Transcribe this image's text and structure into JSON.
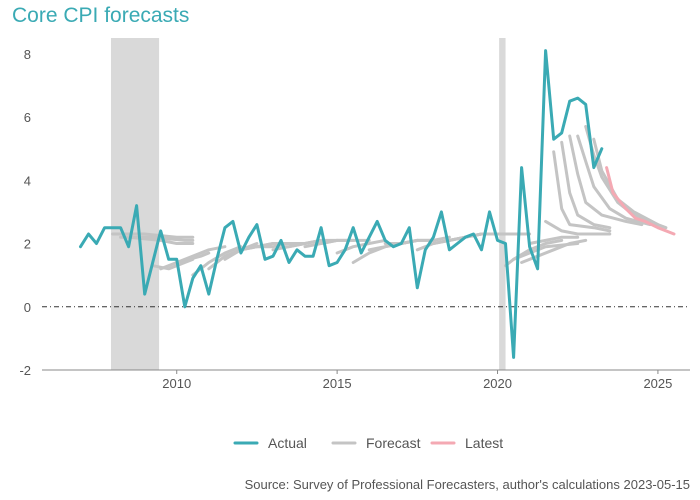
{
  "chart_data": {
    "type": "line",
    "title": "Core CPI forecasts",
    "source": "Source: Survey of Professional Forecasters, author's calculations 2023-05-15",
    "xlabel": "",
    "ylabel": "",
    "xlim": [
      2005.8,
      2026.0
    ],
    "ylim": [
      -2.0,
      8.5
    ],
    "x_ticks": [
      {
        "value": 2010,
        "label": "2010"
      },
      {
        "value": 2015,
        "label": "2015"
      },
      {
        "value": 2020,
        "label": "2020"
      },
      {
        "value": 2025,
        "label": "2025"
      }
    ],
    "y_ticks": [
      {
        "value": -2,
        "label": "-2"
      },
      {
        "value": 0,
        "label": "0"
      },
      {
        "value": 2,
        "label": "2"
      },
      {
        "value": 4,
        "label": "4"
      },
      {
        "value": 6,
        "label": "6"
      },
      {
        "value": 8,
        "label": "8"
      }
    ],
    "zero_line": true,
    "recessions": [
      {
        "start": 2007.95,
        "end": 2009.45
      },
      {
        "start": 2020.05,
        "end": 2020.25
      }
    ],
    "colors": {
      "actual": "#3AAAB4",
      "forecast": "#C4C4C4",
      "latest": "#F4A9B3",
      "recession": "#D9D9D9",
      "axis": "#555555"
    },
    "legend": [
      {
        "key": "actual",
        "label": "Actual"
      },
      {
        "key": "forecast",
        "label": "Forecast"
      },
      {
        "key": "latest",
        "label": "Latest"
      }
    ],
    "series": [
      {
        "name": "Actual",
        "key": "actual",
        "points": [
          [
            2007.0,
            1.9
          ],
          [
            2007.25,
            2.3
          ],
          [
            2007.5,
            2.0
          ],
          [
            2007.75,
            2.5
          ],
          [
            2008.0,
            2.5
          ],
          [
            2008.25,
            2.5
          ],
          [
            2008.5,
            1.9
          ],
          [
            2008.75,
            3.2
          ],
          [
            2009.0,
            0.4
          ],
          [
            2009.25,
            1.4
          ],
          [
            2009.5,
            2.4
          ],
          [
            2009.75,
            1.5
          ],
          [
            2010.0,
            1.5
          ],
          [
            2010.25,
            0.0
          ],
          [
            2010.5,
            0.9
          ],
          [
            2010.75,
            1.3
          ],
          [
            2011.0,
            0.4
          ],
          [
            2011.25,
            1.5
          ],
          [
            2011.5,
            2.5
          ],
          [
            2011.75,
            2.7
          ],
          [
            2012.0,
            1.7
          ],
          [
            2012.25,
            2.2
          ],
          [
            2012.5,
            2.6
          ],
          [
            2012.75,
            1.5
          ],
          [
            2013.0,
            1.6
          ],
          [
            2013.25,
            2.1
          ],
          [
            2013.5,
            1.4
          ],
          [
            2013.75,
            1.8
          ],
          [
            2014.0,
            1.6
          ],
          [
            2014.25,
            1.6
          ],
          [
            2014.5,
            2.5
          ],
          [
            2014.75,
            1.3
          ],
          [
            2015.0,
            1.4
          ],
          [
            2015.25,
            1.8
          ],
          [
            2015.5,
            2.5
          ],
          [
            2015.75,
            1.7
          ],
          [
            2016.0,
            2.2
          ],
          [
            2016.25,
            2.7
          ],
          [
            2016.5,
            2.1
          ],
          [
            2016.75,
            1.9
          ],
          [
            2017.0,
            2.0
          ],
          [
            2017.25,
            2.5
          ],
          [
            2017.5,
            0.6
          ],
          [
            2017.75,
            1.8
          ],
          [
            2018.0,
            2.2
          ],
          [
            2018.25,
            3.0
          ],
          [
            2018.5,
            1.8
          ],
          [
            2018.75,
            2.0
          ],
          [
            2019.0,
            2.2
          ],
          [
            2019.25,
            2.3
          ],
          [
            2019.5,
            1.8
          ],
          [
            2019.75,
            3.0
          ],
          [
            2020.0,
            2.1
          ],
          [
            2020.25,
            2.0
          ],
          [
            2020.5,
            -1.6
          ],
          [
            2020.75,
            4.4
          ],
          [
            2021.0,
            1.9
          ],
          [
            2021.25,
            1.2
          ],
          [
            2021.5,
            8.1
          ],
          [
            2021.75,
            5.3
          ],
          [
            2022.0,
            5.5
          ],
          [
            2022.25,
            6.5
          ],
          [
            2022.5,
            6.6
          ],
          [
            2022.75,
            6.4
          ],
          [
            2023.0,
            4.4
          ],
          [
            2023.25,
            5.0
          ]
        ]
      },
      {
        "name": "Latest",
        "key": "latest",
        "points": [
          [
            2023.4,
            4.4
          ],
          [
            2023.6,
            3.6
          ],
          [
            2024.0,
            3.1
          ],
          [
            2024.3,
            2.8
          ],
          [
            2024.6,
            2.7
          ],
          [
            2025.0,
            2.5
          ],
          [
            2025.5,
            2.3
          ]
        ]
      }
    ],
    "forecast_vintages": [
      {
        "points": [
          [
            2008.0,
            2.3
          ],
          [
            2009.0,
            2.3
          ],
          [
            2010.0,
            2.2
          ],
          [
            2010.5,
            2.2
          ]
        ]
      },
      {
        "points": [
          [
            2008.25,
            2.2
          ],
          [
            2009.25,
            2.2
          ],
          [
            2010.25,
            2.1
          ],
          [
            2010.5,
            2.1
          ]
        ]
      },
      {
        "points": [
          [
            2008.5,
            2.2
          ],
          [
            2009.5,
            2.1
          ],
          [
            2010.0,
            2.0
          ],
          [
            2010.5,
            2.0
          ]
        ]
      },
      {
        "points": [
          [
            2009.25,
            1.3
          ],
          [
            2009.75,
            1.2
          ],
          [
            2010.25,
            1.4
          ],
          [
            2010.5,
            1.5
          ]
        ]
      },
      {
        "points": [
          [
            2009.5,
            1.2
          ],
          [
            2010.0,
            1.4
          ],
          [
            2010.75,
            1.6
          ],
          [
            2011.0,
            1.7
          ]
        ]
      },
      {
        "points": [
          [
            2010.0,
            1.4
          ],
          [
            2010.5,
            1.6
          ],
          [
            2011.0,
            1.8
          ],
          [
            2011.5,
            1.9
          ]
        ]
      },
      {
        "points": [
          [
            2010.5,
            1.0
          ],
          [
            2011.0,
            1.4
          ],
          [
            2011.5,
            1.7
          ],
          [
            2012.0,
            1.9
          ]
        ]
      },
      {
        "points": [
          [
            2011.0,
            1.2
          ],
          [
            2011.5,
            1.6
          ],
          [
            2012.0,
            1.8
          ],
          [
            2012.5,
            2.0
          ]
        ]
      },
      {
        "points": [
          [
            2011.5,
            1.5
          ],
          [
            2012.0,
            1.8
          ],
          [
            2012.5,
            1.9
          ],
          [
            2013.0,
            2.0
          ]
        ]
      },
      {
        "points": [
          [
            2012.0,
            1.8
          ],
          [
            2012.5,
            1.9
          ],
          [
            2013.0,
            2.0
          ],
          [
            2013.5,
            2.0
          ]
        ]
      },
      {
        "points": [
          [
            2012.5,
            1.9
          ],
          [
            2013.0,
            1.9
          ],
          [
            2013.5,
            2.0
          ],
          [
            2014.0,
            2.0
          ]
        ]
      },
      {
        "points": [
          [
            2013.0,
            1.8
          ],
          [
            2013.5,
            1.9
          ],
          [
            2014.0,
            2.0
          ],
          [
            2014.5,
            2.1
          ]
        ]
      },
      {
        "points": [
          [
            2013.5,
            1.9
          ],
          [
            2014.0,
            2.0
          ],
          [
            2014.5,
            2.1
          ],
          [
            2015.0,
            2.1
          ]
        ]
      },
      {
        "points": [
          [
            2014.0,
            1.9
          ],
          [
            2014.5,
            2.0
          ],
          [
            2015.0,
            2.1
          ],
          [
            2015.5,
            2.1
          ]
        ]
      },
      {
        "points": [
          [
            2014.5,
            2.0
          ],
          [
            2015.0,
            2.1
          ],
          [
            2015.5,
            2.1
          ],
          [
            2016.0,
            2.1
          ]
        ]
      },
      {
        "points": [
          [
            2015.0,
            1.7
          ],
          [
            2015.5,
            1.9
          ],
          [
            2016.0,
            2.0
          ],
          [
            2016.5,
            2.1
          ]
        ]
      },
      {
        "points": [
          [
            2015.5,
            1.4
          ],
          [
            2016.0,
            1.7
          ],
          [
            2016.5,
            1.9
          ],
          [
            2017.0,
            2.0
          ]
        ]
      },
      {
        "points": [
          [
            2016.0,
            1.8
          ],
          [
            2016.5,
            1.9
          ],
          [
            2017.0,
            2.0
          ],
          [
            2017.5,
            2.1
          ]
        ]
      },
      {
        "points": [
          [
            2016.5,
            2.0
          ],
          [
            2017.0,
            2.0
          ],
          [
            2017.5,
            2.1
          ],
          [
            2018.0,
            2.1
          ]
        ]
      },
      {
        "points": [
          [
            2017.0,
            2.0
          ],
          [
            2017.5,
            2.1
          ],
          [
            2018.0,
            2.1
          ],
          [
            2018.5,
            2.2
          ]
        ]
      },
      {
        "points": [
          [
            2017.5,
            1.8
          ],
          [
            2018.0,
            2.0
          ],
          [
            2018.5,
            2.1
          ],
          [
            2019.0,
            2.2
          ]
        ]
      },
      {
        "points": [
          [
            2018.0,
            2.0
          ],
          [
            2018.5,
            2.1
          ],
          [
            2019.0,
            2.2
          ],
          [
            2019.5,
            2.3
          ]
        ]
      },
      {
        "points": [
          [
            2018.5,
            2.1
          ],
          [
            2019.0,
            2.2
          ],
          [
            2019.5,
            2.3
          ],
          [
            2020.0,
            2.3
          ]
        ]
      },
      {
        "points": [
          [
            2019.0,
            2.2
          ],
          [
            2019.5,
            2.3
          ],
          [
            2020.0,
            2.3
          ],
          [
            2020.5,
            2.3
          ]
        ]
      },
      {
        "points": [
          [
            2019.5,
            2.3
          ],
          [
            2020.0,
            2.3
          ],
          [
            2020.5,
            2.3
          ],
          [
            2021.0,
            2.3
          ]
        ]
      },
      {
        "points": [
          [
            2020.25,
            1.3
          ],
          [
            2020.5,
            1.5
          ],
          [
            2021.0,
            1.8
          ],
          [
            2021.5,
            2.0
          ],
          [
            2022.0,
            2.1
          ]
        ]
      },
      {
        "points": [
          [
            2020.5,
            1.5
          ],
          [
            2021.0,
            1.7
          ],
          [
            2021.5,
            1.9
          ],
          [
            2022.5,
            2.0
          ]
        ]
      },
      {
        "points": [
          [
            2020.75,
            1.4
          ],
          [
            2021.25,
            1.6
          ],
          [
            2021.75,
            1.8
          ],
          [
            2022.25,
            2.0
          ],
          [
            2022.75,
            2.1
          ]
        ]
      },
      {
        "points": [
          [
            2021.0,
            2.0
          ],
          [
            2021.5,
            2.1
          ],
          [
            2022.0,
            2.2
          ],
          [
            2022.5,
            2.2
          ]
        ]
      },
      {
        "points": [
          [
            2021.5,
            2.7
          ],
          [
            2022.0,
            2.4
          ],
          [
            2022.5,
            2.3
          ],
          [
            2023.5,
            2.3
          ]
        ]
      },
      {
        "points": [
          [
            2021.75,
            4.9
          ],
          [
            2022.0,
            3.1
          ],
          [
            2022.25,
            2.6
          ],
          [
            2023.0,
            2.5
          ],
          [
            2023.5,
            2.4
          ]
        ]
      },
      {
        "points": [
          [
            2022.0,
            5.2
          ],
          [
            2022.25,
            3.6
          ],
          [
            2022.5,
            2.9
          ],
          [
            2023.0,
            2.6
          ],
          [
            2023.5,
            2.5
          ]
        ]
      },
      {
        "points": [
          [
            2022.25,
            5.4
          ],
          [
            2022.5,
            4.2
          ],
          [
            2022.75,
            3.3
          ],
          [
            2023.25,
            2.9
          ],
          [
            2024.0,
            2.7
          ],
          [
            2024.5,
            2.6
          ]
        ]
      },
      {
        "points": [
          [
            2022.5,
            5.4
          ],
          [
            2022.75,
            4.6
          ],
          [
            2023.0,
            3.8
          ],
          [
            2023.5,
            3.1
          ],
          [
            2024.0,
            2.8
          ],
          [
            2024.75,
            2.6
          ]
        ]
      },
      {
        "points": [
          [
            2022.75,
            5.7
          ],
          [
            2023.0,
            4.8
          ],
          [
            2023.25,
            4.1
          ],
          [
            2023.75,
            3.3
          ],
          [
            2024.25,
            2.9
          ],
          [
            2025.0,
            2.6
          ]
        ]
      },
      {
        "points": [
          [
            2023.0,
            5.3
          ],
          [
            2023.25,
            4.3
          ],
          [
            2023.75,
            3.4
          ],
          [
            2024.25,
            3.0
          ],
          [
            2025.0,
            2.6
          ],
          [
            2025.25,
            2.5
          ]
        ]
      }
    ]
  }
}
